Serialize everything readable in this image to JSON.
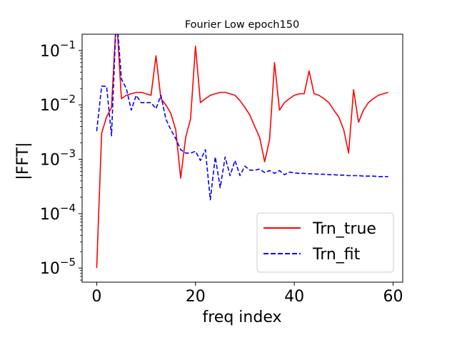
{
  "chart_data": {
    "type": "line",
    "title": "Fourier Low epoch150",
    "xlabel": "freq index",
    "ylabel": "|FFT|",
    "xlim": [
      -2.95,
      61.95
    ],
    "ylim_log10": [
      -5.26,
      -0.7
    ],
    "yscale": "log",
    "grid": false,
    "legend_position": "lower right",
    "x_ticks": [
      {
        "value": 0,
        "label": "0"
      },
      {
        "value": 20,
        "label": "20"
      },
      {
        "value": 40,
        "label": "40"
      },
      {
        "value": 60,
        "label": "60"
      }
    ],
    "y_ticks": [
      {
        "exp": -5,
        "base": "10",
        "sup": "−5"
      },
      {
        "exp": -4,
        "base": "10",
        "sup": "−4"
      },
      {
        "exp": -3,
        "base": "10",
        "sup": "−3"
      },
      {
        "exp": -2,
        "base": "10",
        "sup": "−2"
      },
      {
        "exp": -1,
        "base": "10",
        "sup": "−1"
      }
    ],
    "series": [
      {
        "name": "Trn_true",
        "color": "#ff0000",
        "style": "solid",
        "values": [
          1e-05,
          0.003,
          0.006,
          0.009,
          0.45,
          0.013,
          0.015,
          0.016,
          0.017,
          0.017,
          0.016,
          0.015,
          0.08,
          0.013,
          0.01,
          0.007,
          0.0035,
          0.00045,
          0.0025,
          0.0055,
          0.12,
          0.011,
          0.013,
          0.015,
          0.016,
          0.017,
          0.017,
          0.016,
          0.015,
          0.012,
          0.009,
          0.0065,
          0.004,
          0.0025,
          0.0009,
          0.0023,
          0.06,
          0.008,
          0.011,
          0.013,
          0.015,
          0.016,
          0.016,
          0.042,
          0.016,
          0.015,
          0.013,
          0.011,
          0.008,
          0.006,
          0.0035,
          0.0013,
          0.019,
          0.0048,
          0.008,
          0.011,
          0.013,
          0.015,
          0.016,
          0.017
        ]
      },
      {
        "name": "Trn_fit",
        "color": "#0000ff",
        "style": "dashed",
        "values": [
          0.0033,
          0.022,
          0.022,
          0.0027,
          0.5,
          0.03,
          0.02,
          0.008,
          0.015,
          0.011,
          0.011,
          0.011,
          0.0085,
          0.015,
          0.0055,
          0.0035,
          0.0024,
          0.0015,
          0.0013,
          0.0013,
          0.0014,
          0.00095,
          0.0015,
          0.00018,
          0.0011,
          0.0003,
          0.0011,
          0.0005,
          0.00095,
          0.0005,
          0.00075,
          0.00063,
          0.00063,
          0.00066,
          0.00057,
          0.00062,
          0.00055,
          0.00062,
          0.00052,
          0.00058,
          0.00056,
          0.00055,
          0.00055,
          0.00054,
          0.00054,
          0.00053,
          0.00053,
          0.00052,
          0.00052,
          0.00051,
          0.00051,
          0.0005,
          0.0005,
          0.0005,
          0.00049,
          0.00049,
          0.00049,
          0.00048,
          0.00048,
          0.00048
        ]
      }
    ]
  }
}
